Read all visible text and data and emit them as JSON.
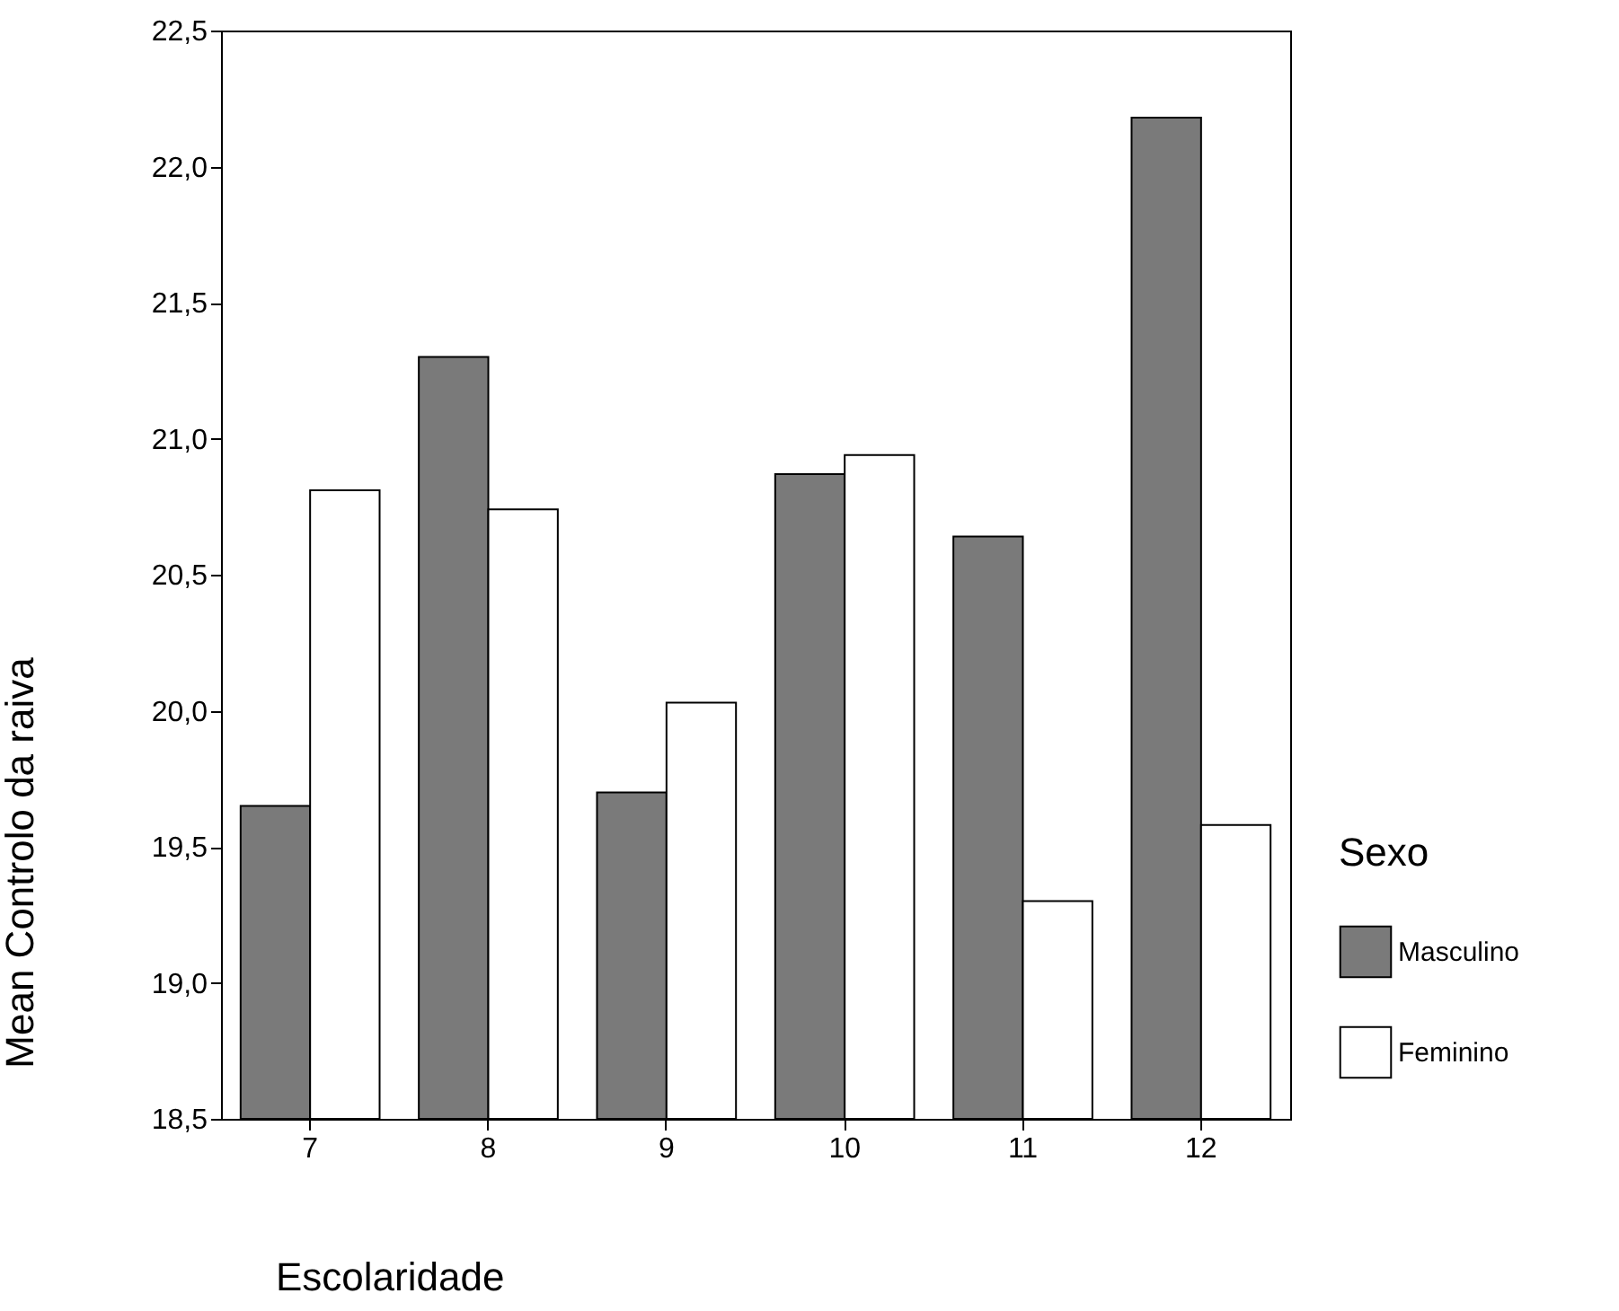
{
  "chart_data": {
    "type": "bar",
    "xlabel": "Escolaridade",
    "ylabel": "Mean Controlo da raiva",
    "legend_title": "Sexo",
    "categories": [
      "7",
      "8",
      "9",
      "10",
      "11",
      "12"
    ],
    "series": [
      {
        "name": "Masculino",
        "color": "#7a7a7a",
        "values": [
          19.65,
          21.3,
          19.7,
          20.87,
          20.64,
          22.18
        ]
      },
      {
        "name": "Feminino",
        "color": "#ffffff",
        "values": [
          20.81,
          20.74,
          20.03,
          20.94,
          19.3,
          19.58
        ]
      }
    ],
    "ylim": [
      18.5,
      22.5
    ],
    "yticks": [
      {
        "value": 18.5,
        "label": "18,5"
      },
      {
        "value": 19,
        "label": "19,0"
      },
      {
        "value": 19.5,
        "label": "19,5"
      },
      {
        "value": 20,
        "label": "20,0"
      },
      {
        "value": 20.5,
        "label": "20,5"
      },
      {
        "value": 21,
        "label": "21,0"
      },
      {
        "value": 21.5,
        "label": "21,5"
      },
      {
        "value": 22,
        "label": "22,0"
      },
      {
        "value": 22.5,
        "label": "22,5"
      }
    ],
    "grid": false,
    "legend": "right"
  }
}
